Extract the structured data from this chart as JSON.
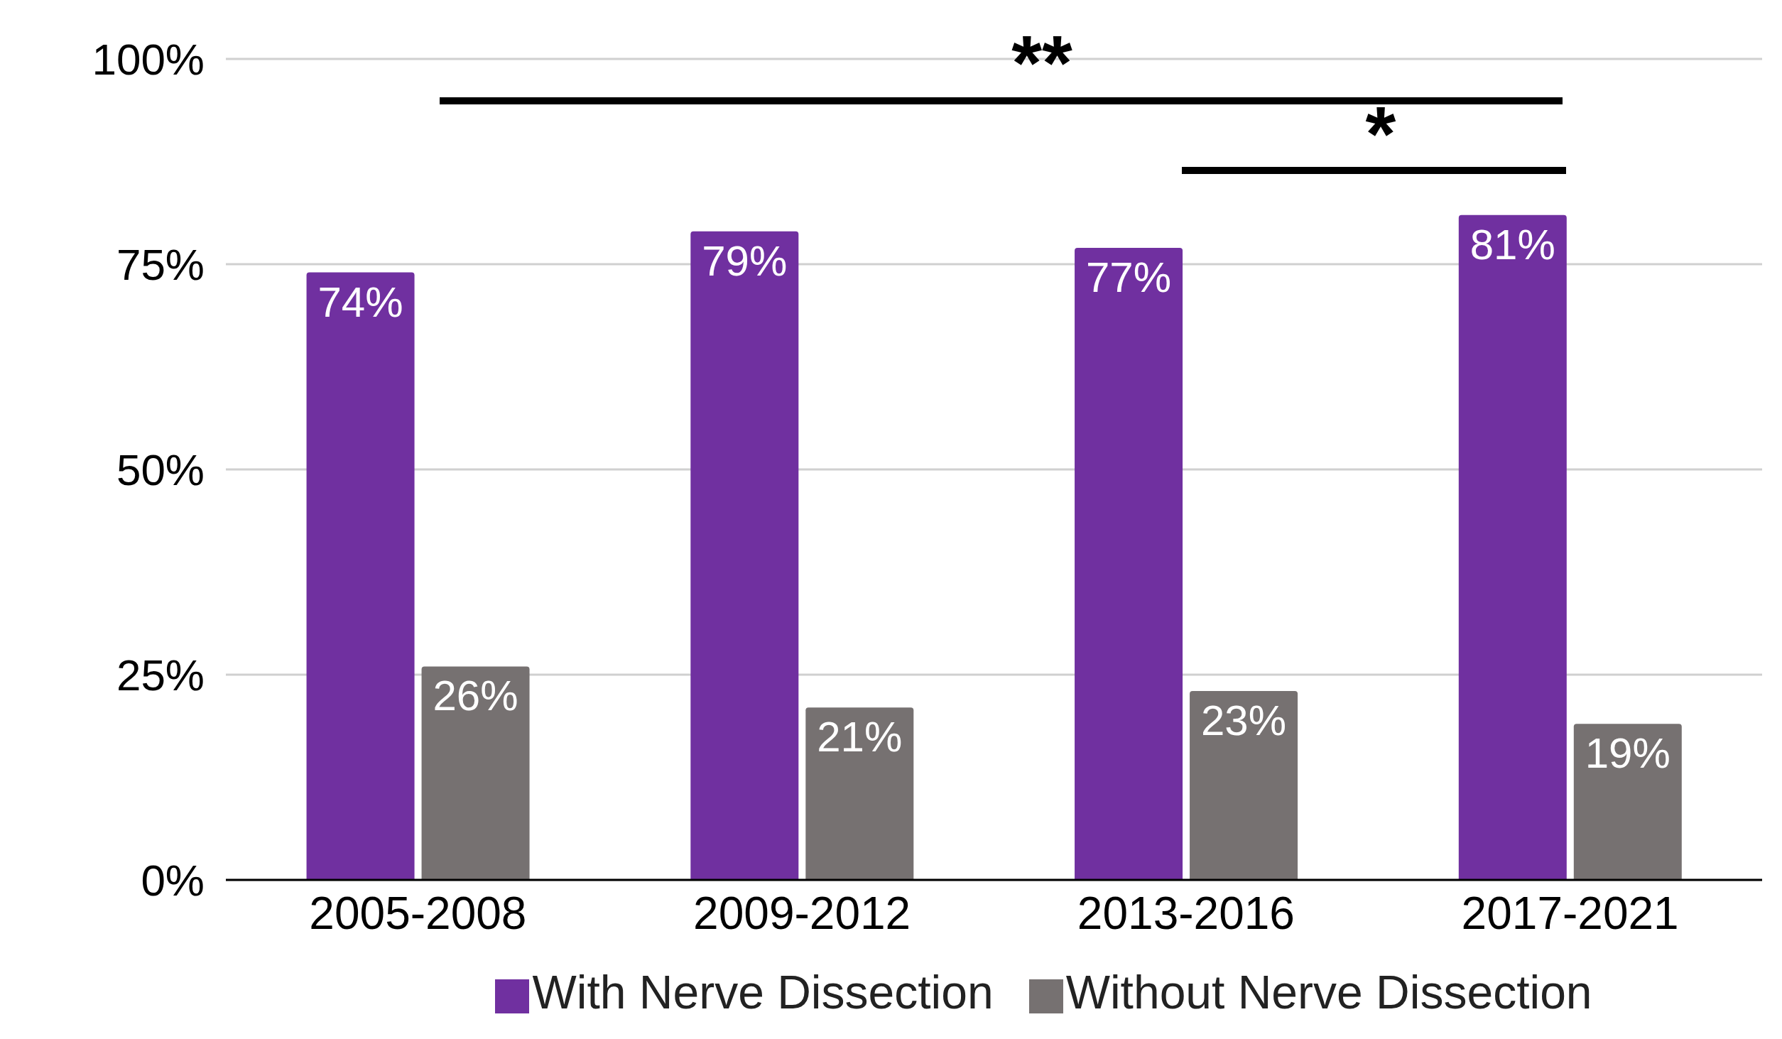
{
  "chart_data": {
    "type": "bar",
    "categories": [
      "2005-2008",
      "2009-2012",
      "2013-2016",
      "2017-2021"
    ],
    "series": [
      {
        "name": "With Nerve Dissection",
        "color": "#7030a0",
        "values": [
          74,
          79,
          77,
          81
        ],
        "value_labels": [
          "74%",
          "79%",
          "77%",
          "81%"
        ]
      },
      {
        "name": "Without Nerve Dissection",
        "color": "#767171",
        "values": [
          26,
          21,
          23,
          19
        ],
        "value_labels": [
          "26%",
          "21%",
          "23%",
          "19%"
        ]
      }
    ],
    "ylim": [
      0,
      100
    ],
    "yticks": [
      {
        "value": 0,
        "label": "0%"
      },
      {
        "value": 25,
        "label": "25%"
      },
      {
        "value": 50,
        "label": "50%"
      },
      {
        "value": 75,
        "label": "75%"
      },
      {
        "value": 100,
        "label": "100%"
      }
    ],
    "grid": "y",
    "legend": "bottom",
    "annotations": [
      "**",
      "*"
    ]
  }
}
